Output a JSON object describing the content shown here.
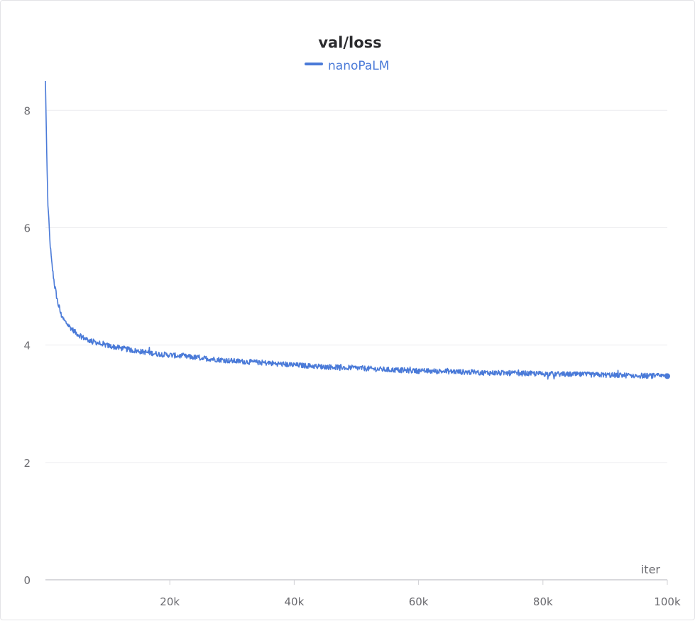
{
  "chart_data": {
    "type": "line",
    "title": "val/loss",
    "xlabel": "iter",
    "ylabel": "",
    "xlim": [
      0,
      100000
    ],
    "ylim": [
      0,
      8.5
    ],
    "x_ticks": [
      {
        "value": 20000,
        "label": "20k"
      },
      {
        "value": 40000,
        "label": "40k"
      },
      {
        "value": 60000,
        "label": "60k"
      },
      {
        "value": 80000,
        "label": "80k"
      },
      {
        "value": 100000,
        "label": "100k"
      }
    ],
    "y_ticks": [
      {
        "value": 0,
        "label": "0"
      },
      {
        "value": 2,
        "label": "2"
      },
      {
        "value": 4,
        "label": "4"
      },
      {
        "value": 6,
        "label": "6"
      },
      {
        "value": 8,
        "label": "8"
      }
    ],
    "grid": true,
    "legend_position": "top-center",
    "series": [
      {
        "name": "nanoPaLM",
        "color": "#4a7ad8",
        "x": [
          0,
          200,
          400,
          700,
          1000,
          1500,
          2000,
          2500,
          3000,
          4000,
          5000,
          6000,
          7000,
          8000,
          10000,
          12000,
          14000,
          16000,
          18000,
          20000,
          25000,
          30000,
          35000,
          40000,
          45000,
          50000,
          55000,
          60000,
          65000,
          70000,
          75000,
          80000,
          85000,
          90000,
          95000,
          100000
        ],
        "y": [
          8.5,
          7.3,
          6.4,
          5.8,
          5.4,
          5.0,
          4.72,
          4.52,
          4.42,
          4.3,
          4.2,
          4.13,
          4.08,
          4.05,
          3.99,
          3.95,
          3.91,
          3.88,
          3.85,
          3.83,
          3.78,
          3.73,
          3.7,
          3.66,
          3.63,
          3.61,
          3.58,
          3.56,
          3.55,
          3.53,
          3.52,
          3.51,
          3.5,
          3.49,
          3.48,
          3.47
        ]
      }
    ]
  }
}
